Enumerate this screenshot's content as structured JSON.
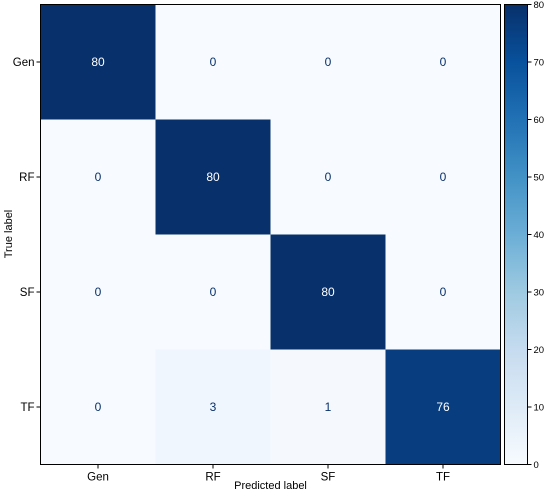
{
  "chart_data": {
    "type": "heatmap",
    "title": "",
    "xlabel": "Predicted label",
    "ylabel": "True label",
    "x_categories": [
      "Gen",
      "RF",
      "SF",
      "TF"
    ],
    "y_categories": [
      "Gen",
      "RF",
      "SF",
      "TF"
    ],
    "values": [
      [
        80,
        0,
        0,
        0
      ],
      [
        0,
        80,
        0,
        0
      ],
      [
        0,
        0,
        80,
        0
      ],
      [
        0,
        3,
        1,
        76
      ]
    ],
    "colorscale": "Blues",
    "colorbar": {
      "range": [
        0,
        80
      ],
      "ticks": [
        "0",
        "10",
        "20",
        "30",
        "40",
        "50",
        "60",
        "70",
        "80"
      ]
    },
    "colors": {
      "low": "#f7fbff",
      "high": "#08306b",
      "text_on_dark": "#ffffff",
      "text_on_light": "#08306b"
    }
  }
}
